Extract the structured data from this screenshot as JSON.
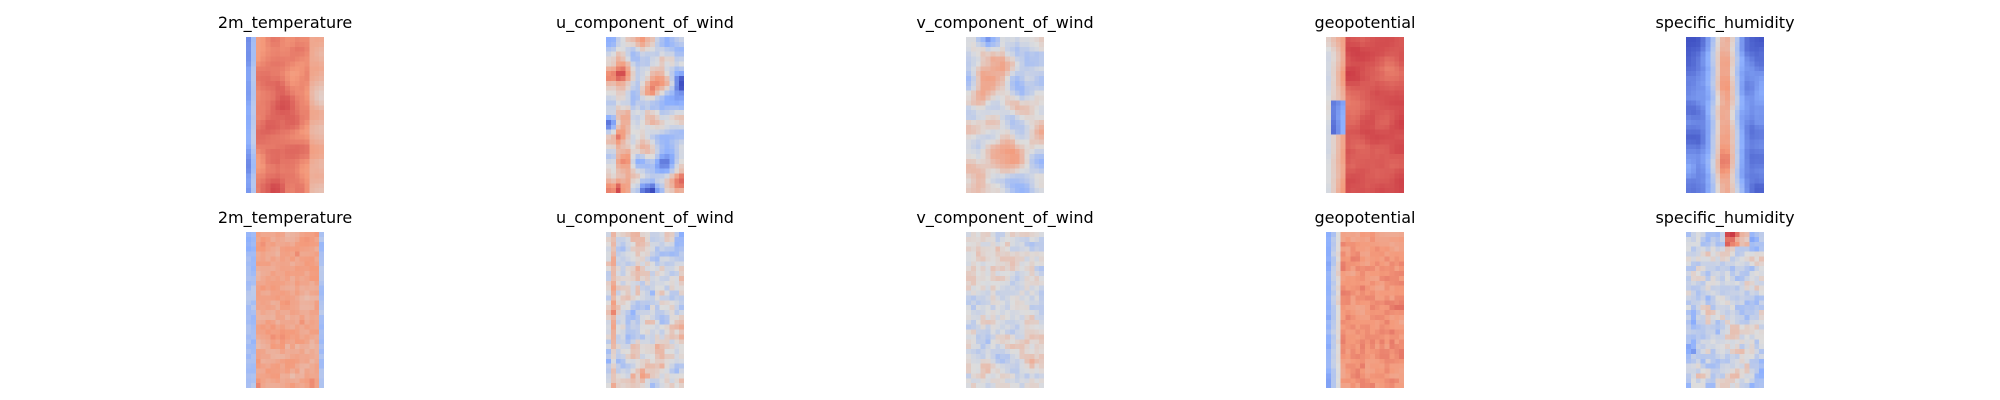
{
  "chart_data": {
    "type": "heatmap",
    "colormap": "coolwarm",
    "axes_visible": false,
    "layout_grid": [
      2,
      5
    ],
    "colors": {
      "cold": "#3b4cc0",
      "neutral": "#dddddd",
      "warm": "#b40426"
    },
    "panels": [
      {
        "title": "2m_temperature",
        "row": 0,
        "col": 0,
        "pattern": "temperature",
        "seed": 11
      },
      {
        "title": "u_component_of_wind",
        "row": 0,
        "col": 1,
        "pattern": "wind_u",
        "seed": 23
      },
      {
        "title": "v_component_of_wind",
        "row": 0,
        "col": 2,
        "pattern": "wind_v",
        "seed": 37
      },
      {
        "title": "geopotential",
        "row": 0,
        "col": 3,
        "pattern": "geopotential",
        "seed": 41
      },
      {
        "title": "specific_humidity",
        "row": 0,
        "col": 4,
        "pattern": "humidity",
        "seed": 53
      },
      {
        "title": "2m_temperature",
        "row": 1,
        "col": 0,
        "pattern": "temperature_err",
        "seed": 61
      },
      {
        "title": "u_component_of_wind",
        "row": 1,
        "col": 1,
        "pattern": "noise_u",
        "seed": 71
      },
      {
        "title": "v_component_of_wind",
        "row": 1,
        "col": 2,
        "pattern": "noise_v",
        "seed": 83
      },
      {
        "title": "geopotential",
        "row": 1,
        "col": 3,
        "pattern": "geopotential_err",
        "seed": 97
      },
      {
        "title": "specific_humidity",
        "row": 1,
        "col": 4,
        "pattern": "humidity_err",
        "seed": 101
      }
    ]
  }
}
